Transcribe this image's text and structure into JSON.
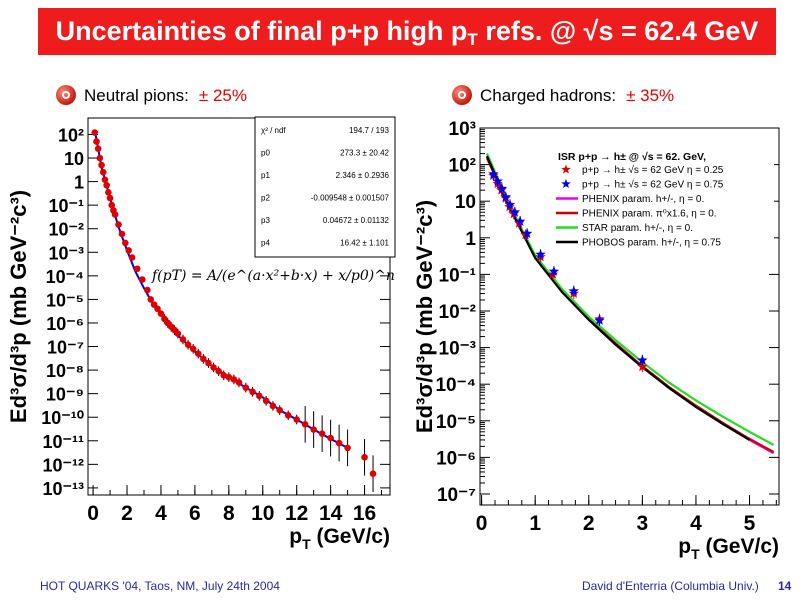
{
  "slide": {
    "title_main": "Uncertainties of final p+p high p",
    "title_sub": "T",
    "title_end": " refs. @ √s = 62.4 GeV",
    "bullet_left_label": "Neutral pions:",
    "bullet_left_value": "± 25%",
    "bullet_right_label": "Charged hadrons:",
    "bullet_right_value": "± 35%",
    "footer_left": "HOT QUARKS '04, Taos, NM, July 24th 2004",
    "footer_right": "David d'Enterria (Columbia Univ.)",
    "page_number": "14",
    "colors": {
      "title_bg": "#ee1c1c",
      "title_text": "#ffffff",
      "uncertainty_text": "#e00000",
      "footer_text": "#2828a0"
    }
  },
  "chart_data": [
    {
      "type": "scatter",
      "xlabel_main": "p",
      "xlabel_sub": "T",
      "xlabel_unit": " (GeV/c)",
      "ylabel": "Ed³σ/d³p (mb GeV⁻²c³)",
      "y_log_scale": true,
      "xlim": [
        -0.3,
        17.5
      ],
      "ylim": [
        5e-14,
        500
      ],
      "xticks": [
        "0",
        "2",
        "4",
        "6",
        "8",
        "10",
        "12",
        "14",
        "16"
      ],
      "yticks": [
        "10²",
        "10",
        "1",
        "10⁻¹",
        "10⁻²",
        "10⁻³",
        "10⁻⁴",
        "10⁻⁵",
        "10⁻⁶",
        "10⁻⁷",
        "10⁻⁸",
        "10⁻⁹",
        "10⁻¹⁰",
        "10⁻¹¹",
        "10⁻¹²",
        "10⁻¹³"
      ],
      "grid": false,
      "fit_formula": "f(pT) = A/(e^(a·x²+b·x) + x/p0)^n",
      "fit_stats": [
        {
          "label": "χ² / ndf",
          "value": "194.7 / 193"
        },
        {
          "label": "p0",
          "value": "273.3 ± 20.42"
        },
        {
          "label": "p1",
          "value": "2.346 ± 0.2936"
        },
        {
          "label": "p2",
          "value": "-0.009548 ± 0.001507"
        },
        {
          "label": "p3",
          "value": "0.04672 ± 0.01132"
        },
        {
          "label": "p4",
          "value": "16.42 ± 1.101"
        }
      ],
      "series": [
        {
          "color": "#e00000",
          "points": [
            [
              0.1,
              120
            ],
            [
              0.2,
              50
            ],
            [
              0.3,
              25
            ],
            [
              0.4,
              10
            ],
            [
              0.5,
              5
            ],
            [
              0.6,
              2.5
            ],
            [
              0.7,
              1.2
            ],
            [
              0.8,
              0.7
            ],
            [
              0.9,
              0.35
            ],
            [
              1.0,
              0.2
            ],
            [
              1.1,
              0.1
            ],
            [
              1.2,
              0.06
            ],
            [
              1.3,
              0.04
            ],
            [
              1.5,
              0.015
            ],
            [
              1.7,
              0.006
            ],
            [
              1.9,
              0.0025
            ],
            [
              2.1,
              0.0012
            ],
            [
              2.3,
              0.0006
            ],
            [
              2.6,
              0.0002
            ],
            [
              2.9,
              7e-05
            ],
            [
              3.2,
              2.5e-05
            ],
            [
              3.4,
              1e-05
            ],
            [
              3.6,
              6e-06
            ],
            [
              3.8,
              4e-06
            ],
            [
              4.0,
              2.5e-06
            ],
            [
              4.2,
              1.5e-06
            ],
            [
              4.4,
              1e-06
            ],
            [
              4.6,
              7e-07
            ],
            [
              4.8,
              5e-07
            ],
            [
              5.0,
              3.5e-07
            ],
            [
              5.3,
              2e-07
            ],
            [
              5.6,
              1.2e-07
            ],
            [
              5.9,
              8e-08
            ],
            [
              6.2,
              5e-08
            ],
            [
              6.5,
              3e-08
            ],
            [
              6.8,
              2e-08
            ],
            [
              7.1,
              1.3e-08
            ],
            [
              7.4,
              9e-09
            ],
            [
              7.7,
              6e-09
            ],
            [
              8.0,
              5e-09
            ],
            [
              8.3,
              4e-09
            ],
            [
              8.6,
              3e-09
            ],
            [
              9.0,
              1.8e-09
            ],
            [
              9.4,
              1.2e-09
            ],
            [
              9.8,
              8e-10
            ],
            [
              10.2,
              5e-10
            ],
            [
              10.6,
              3e-10
            ],
            [
              11.0,
              2e-10
            ],
            [
              11.5,
              1.2e-10
            ],
            [
              12.0,
              8e-11
            ],
            [
              12.5,
              5e-11
            ],
            [
              13.0,
              3e-11
            ],
            [
              13.5,
              2e-11
            ],
            [
              14.0,
              1.3e-11
            ],
            [
              14.5,
              8e-12
            ],
            [
              15.0,
              5e-12
            ],
            [
              16.0,
              2e-12
            ],
            [
              16.5,
              4e-13
            ]
          ]
        },
        {
          "color": "#0000dd",
          "points": [
            [
              0.1,
              150
            ],
            [
              0.5,
              4
            ],
            [
              1.0,
              0.2
            ],
            [
              1.5,
              0.012
            ],
            [
              2.0,
              0.0012
            ],
            [
              2.5,
              0.00015
            ],
            [
              3.0,
              3e-05
            ],
            [
              3.5,
              7e-06
            ],
            [
              4.0,
              2.2e-06
            ],
            [
              5.0,
              3e-07
            ],
            [
              6.0,
              6e-08
            ],
            [
              7.0,
              1.5e-08
            ],
            [
              8.0,
              5e-09
            ],
            [
              9.0,
              1.8e-09
            ],
            [
              10.0,
              7e-10
            ],
            [
              11.0,
              2e-10
            ],
            [
              12.0,
              8e-11
            ],
            [
              13.0,
              3e-11
            ],
            [
              14.0,
              1.2e-11
            ],
            [
              15.0,
              5e-12
            ]
          ]
        }
      ]
    },
    {
      "type": "line",
      "xlabel_main": "p",
      "xlabel_sub": "T",
      "xlabel_unit": " (GeV/c)",
      "ylabel": "Ed³σ/d³p (mb GeV⁻²c³)",
      "y_log_scale": true,
      "xlim": [
        -0.03,
        5.55
      ],
      "ylim": [
        5e-08,
        1000
      ],
      "xticks": [
        "0",
        "1",
        "2",
        "3",
        "4",
        "5"
      ],
      "yticks": [
        "10³",
        "10²",
        "10",
        "1",
        "10⁻¹",
        "10⁻²",
        "10⁻³",
        "10⁻⁴",
        "10⁻⁵",
        "10⁻⁶",
        "10⁻⁷"
      ],
      "grid": false,
      "legend_title": "ISR p+p → h± @ √s = 62. GeV,",
      "legend_position": "top-right",
      "series": [
        {
          "name": "p+p → h± √s = 62 GeV η = 0.25",
          "color": "#e00000",
          "marker": "star",
          "x": [
            0.22,
            0.3,
            0.37,
            0.45,
            0.52,
            0.6,
            0.7,
            0.82,
            1.1,
            1.33,
            1.72,
            2.2,
            3.0
          ],
          "y": [
            50,
            30,
            20,
            12,
            7,
            4.5,
            2.5,
            1.2,
            0.3,
            0.1,
            0.03,
            0.006,
            0.0003
          ]
        },
        {
          "name": "p+p → h± √s = 62 GeV η = 0.75",
          "color": "#0000ee",
          "marker": "star",
          "x": [
            0.22,
            0.3,
            0.38,
            0.45,
            0.53,
            0.62,
            0.72,
            0.85,
            1.1,
            1.35,
            1.72,
            2.2,
            3.0
          ],
          "y": [
            55,
            35,
            22,
            13,
            8,
            5,
            2.8,
            1.3,
            0.35,
            0.12,
            0.035,
            0.0055,
            0.00045
          ]
        },
        {
          "name": "PHENIX param. h+/-, η = 0.",
          "color": "#ee00ee",
          "x": [
            0.1,
            0.5,
            1.0,
            1.5,
            2.0,
            2.5,
            3.0,
            3.5,
            4.0,
            4.5,
            5.0,
            5.45
          ],
          "y": [
            160,
            8,
            0.3,
            0.035,
            0.006,
            0.0013,
            0.0003,
            8e-05,
            2.5e-05,
            8.5e-06,
            3e-06,
            1.3e-06
          ]
        },
        {
          "name": "PHENIX param. π⁰x1.6, η = 0.",
          "color": "#cc0000",
          "x": [
            0.1,
            0.5,
            1.0,
            1.5,
            2.0,
            2.5,
            3.0,
            3.5,
            4.0,
            4.5,
            5.0,
            5.45
          ],
          "y": [
            150,
            7.5,
            0.3,
            0.035,
            0.006,
            0.0013,
            0.00031,
            8.3e-05,
            2.6e-05,
            8.8e-06,
            3.2e-06,
            1.4e-06
          ]
        },
        {
          "name": "STAR param. h+/-, η = 0.",
          "color": "#22dd22",
          "x": [
            0.1,
            0.5,
            1.0,
            1.5,
            2.0,
            2.5,
            3.0,
            3.5,
            4.0,
            4.5,
            5.0,
            5.45
          ],
          "y": [
            200,
            9,
            0.33,
            0.04,
            0.007,
            0.0016,
            0.0004,
            0.00011,
            3.6e-05,
            1.3e-05,
            5e-06,
            2.2e-06
          ]
        },
        {
          "name": "PHOBOS param. h+/-, η = 0.75",
          "color": "#000000",
          "x": [
            0.1,
            0.5,
            1.0,
            1.5,
            2.0,
            2.5,
            3.0,
            3.5,
            4.0,
            4.5,
            5.0
          ],
          "y": [
            170,
            7.8,
            0.28,
            0.033,
            0.0057,
            0.0012,
            0.00029,
            7.8e-05,
            2.4e-05,
            8.2e-06,
            3e-06
          ]
        }
      ]
    }
  ]
}
